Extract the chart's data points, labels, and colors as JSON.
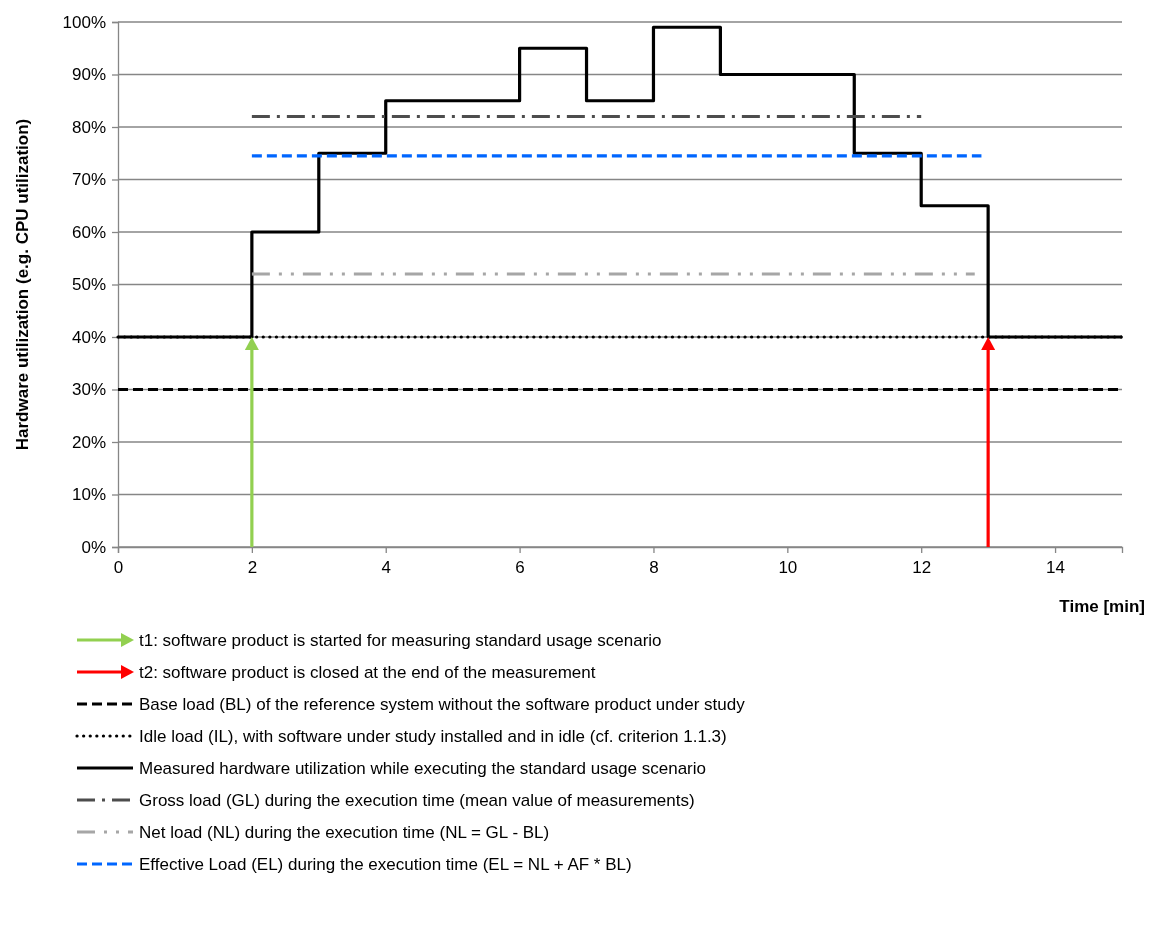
{
  "chart_data": {
    "type": "line",
    "xlabel": "Time [min]",
    "ylabel": "Hardware utilization (e.g. CPU utilization)",
    "xlim": [
      0,
      15
    ],
    "xticks": [
      0,
      2,
      4,
      6,
      8,
      10,
      12,
      14
    ],
    "ylim": [
      0,
      100
    ],
    "yticks": [
      {
        "value": 0,
        "label": "0%"
      },
      {
        "value": 10,
        "label": "10%"
      },
      {
        "value": 20,
        "label": "20%"
      },
      {
        "value": 30,
        "label": "30%"
      },
      {
        "value": 40,
        "label": "40%"
      },
      {
        "value": 50,
        "label": "50%"
      },
      {
        "value": 60,
        "label": "60%"
      },
      {
        "value": 70,
        "label": "70%"
      },
      {
        "value": 80,
        "label": "80%"
      },
      {
        "value": 90,
        "label": "90%"
      },
      {
        "value": 100,
        "label": "100%"
      }
    ],
    "grid": "y",
    "legend": "bottom",
    "ref_lines": [
      {
        "axis": "x",
        "value": 2,
        "label": "t1: software product is started for measuring standard usage scenario",
        "color": "#92d050"
      },
      {
        "axis": "x",
        "value": 13,
        "label": "t2: software product is closed at the end of the measurement",
        "color": "#ff0000"
      }
    ],
    "series": [
      {
        "name": "Base load (BL) of the reference system without the software product under study",
        "color": "#000000",
        "line_style": "dashed",
        "x": [
          0,
          15
        ],
        "values": [
          30,
          30
        ]
      },
      {
        "name": "Idle load (IL), with software under study installed and in idle (cf. criterion 1.1.3)",
        "color": "#000000",
        "line_style": "dotted",
        "x": [
          0,
          15
        ],
        "values": [
          40,
          40
        ]
      },
      {
        "name": "Measured hardware utilization while executing the standard usage scenario",
        "type": "step",
        "color": "#000000",
        "line_style": "solid",
        "x": [
          0,
          2,
          3,
          4,
          6,
          7,
          8,
          9,
          11,
          12,
          13,
          15
        ],
        "values": [
          40,
          60,
          75,
          85,
          95,
          85,
          99,
          90,
          75,
          65,
          40,
          40
        ]
      },
      {
        "name": "Gross load (GL) during the execution time (mean value of measurements)",
        "color": "#4d4d4d",
        "line_style": "dashdot",
        "x": [
          2,
          12
        ],
        "values": [
          82,
          82
        ]
      },
      {
        "name": "Net load (NL) during the execution time (NL = GL - BL)",
        "color": "#a6a6a6",
        "line_style": "dashdotdot",
        "x": [
          2,
          12.8
        ],
        "values": [
          52,
          52
        ]
      },
      {
        "name": "Effective Load (EL) during the execution time (EL = NL + AF * BL)",
        "color": "#0066ff",
        "line_style": "dashed",
        "x": [
          2,
          12.9
        ],
        "values": [
          74.5,
          74.5
        ]
      }
    ]
  }
}
